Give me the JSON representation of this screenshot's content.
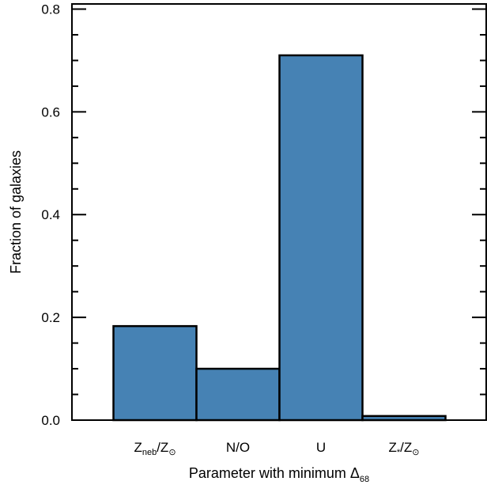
{
  "chart_data": {
    "type": "bar",
    "title": "",
    "categories": [
      "Z_neb/Z_⊙",
      "N/O",
      "U",
      "Z_*/Z_⊙"
    ],
    "category_labels": [
      {
        "main": "Z",
        "sub": "neb",
        "rest": "/Z",
        "sub2": "⊙"
      },
      {
        "main": "N/O",
        "sub": "",
        "rest": "",
        "sub2": ""
      },
      {
        "main": "U",
        "sub": "",
        "rest": "",
        "sub2": ""
      },
      {
        "main": "Z",
        "sub": "*",
        "rest": "/Z",
        "sub2": "⊙"
      }
    ],
    "values": [
      0.183,
      0.1,
      0.71,
      0.008
    ],
    "ylim": [
      0,
      0.81
    ],
    "yticks": [
      0.0,
      0.2,
      0.4,
      0.6,
      0.8
    ],
    "ytick_labels": [
      "0.0",
      "0.2",
      "0.4",
      "0.6",
      "0.8"
    ],
    "yminor_step": 0.05,
    "ylabel": "Fraction of galaxies",
    "xlabel_main": "Parameter with minimum Δ",
    "xlabel_sub": "68",
    "bar_color": "#4682B4",
    "edge_color": "#000000",
    "grid": false,
    "legend": "none"
  }
}
